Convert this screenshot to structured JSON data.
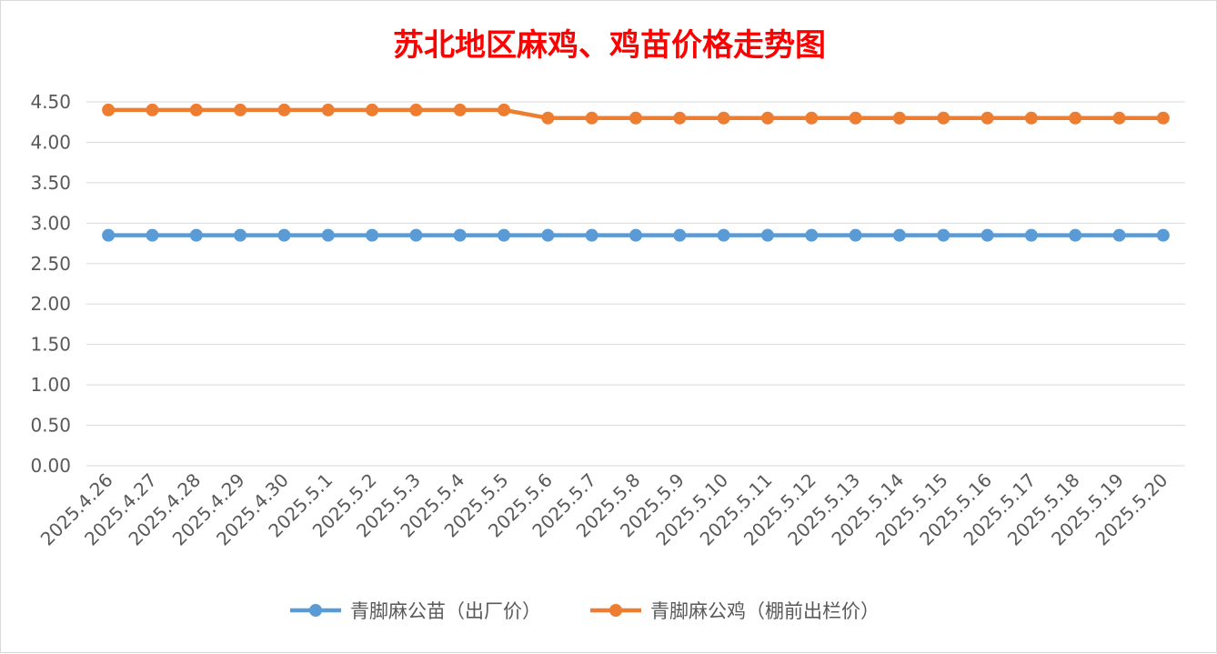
{
  "chart_data": {
    "type": "line",
    "title": "苏北地区麻鸡、鸡苗价格走势图",
    "xlabel": "",
    "ylabel": "",
    "ylim": [
      0,
      4.5
    ],
    "yticks": [
      "0.00",
      "0.50",
      "1.00",
      "1.50",
      "2.00",
      "2.50",
      "3.00",
      "3.50",
      "4.00",
      "4.50"
    ],
    "grid": true,
    "legend_position": "bottom",
    "categories": [
      "2025.4.26",
      "2025.4.27",
      "2025.4.28",
      "2025.4.29",
      "2025.4.30",
      "2025.5.1",
      "2025.5.2",
      "2025.5.3",
      "2025.5.4",
      "2025.5.5",
      "2025.5.6",
      "2025.5.7",
      "2025.5.8",
      "2025.5.9",
      "2025.5.10",
      "2025.5.11",
      "2025.5.12",
      "2025.5.13",
      "2025.5.14",
      "2025.5.15",
      "2025.5.16",
      "2025.5.17",
      "2025.5.18",
      "2025.5.19",
      "2025.5.20"
    ],
    "series": [
      {
        "name": "青脚麻公苗（出厂价）",
        "color": "#5b9bd5",
        "values": [
          2.85,
          2.85,
          2.85,
          2.85,
          2.85,
          2.85,
          2.85,
          2.85,
          2.85,
          2.85,
          2.85,
          2.85,
          2.85,
          2.85,
          2.85,
          2.85,
          2.85,
          2.85,
          2.85,
          2.85,
          2.85,
          2.85,
          2.85,
          2.85,
          2.85
        ]
      },
      {
        "name": "青脚麻公鸡（棚前出栏价）",
        "color": "#ed7d31",
        "values": [
          4.4,
          4.4,
          4.4,
          4.4,
          4.4,
          4.4,
          4.4,
          4.4,
          4.4,
          4.4,
          4.3,
          4.3,
          4.3,
          4.3,
          4.3,
          4.3,
          4.3,
          4.3,
          4.3,
          4.3,
          4.3,
          4.3,
          4.3,
          4.3,
          4.3
        ]
      }
    ]
  }
}
